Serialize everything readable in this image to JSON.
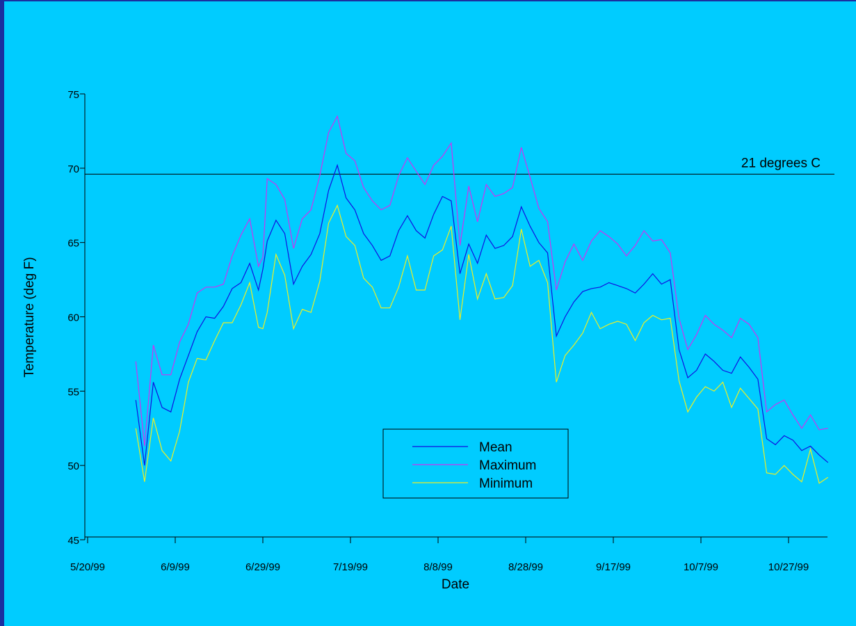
{
  "chart_data": {
    "type": "line",
    "title": "",
    "xlabel": "Date",
    "ylabel": "Temperature (deg F)",
    "ylim": [
      45,
      75
    ],
    "yticks": [
      45,
      50,
      55,
      60,
      65,
      70,
      75
    ],
    "xlim": [
      "1999-05-20",
      "1999-11-05"
    ],
    "xticks": [
      {
        "date": "1999-05-20",
        "label": "5/20/99"
      },
      {
        "date": "1999-06-09",
        "label": "6/9/99"
      },
      {
        "date": "1999-06-29",
        "label": "6/29/99"
      },
      {
        "date": "1999-07-19",
        "label": "7/19/99"
      },
      {
        "date": "1999-08-08",
        "label": "8/8/99"
      },
      {
        "date": "1999-08-28",
        "label": "8/28/99"
      },
      {
        "date": "1999-09-17",
        "label": "9/17/99"
      },
      {
        "date": "1999-10-07",
        "label": "10/7/99"
      },
      {
        "date": "1999-10-27",
        "label": "10/27/99"
      }
    ],
    "grid": false,
    "legend_position": "bottom-center",
    "reference_line": {
      "y": 69.6,
      "label": "21 degrees C",
      "color": "#000000"
    },
    "series": [
      {
        "name": "Mean",
        "color": "#1010e0",
        "points": [
          [
            "1999-05-31",
            54.4
          ],
          [
            "1999-06-02",
            50.0
          ],
          [
            "1999-06-04",
            55.6
          ],
          [
            "1999-06-06",
            53.9
          ],
          [
            "1999-06-08",
            53.6
          ],
          [
            "1999-06-10",
            55.8
          ],
          [
            "1999-06-12",
            57.4
          ],
          [
            "1999-06-14",
            59.0
          ],
          [
            "1999-06-16",
            60.0
          ],
          [
            "1999-06-18",
            59.9
          ],
          [
            "1999-06-20",
            60.7
          ],
          [
            "1999-06-22",
            61.9
          ],
          [
            "1999-06-24",
            62.3
          ],
          [
            "1999-06-26",
            63.6
          ],
          [
            "1999-06-28",
            61.8
          ],
          [
            "1999-06-29",
            63.2
          ],
          [
            "1999-06-30",
            65.1
          ],
          [
            "1999-07-02",
            66.5
          ],
          [
            "1999-07-04",
            65.6
          ],
          [
            "1999-07-06",
            62.2
          ],
          [
            "1999-07-08",
            63.4
          ],
          [
            "1999-07-10",
            64.2
          ],
          [
            "1999-07-12",
            65.6
          ],
          [
            "1999-07-14",
            68.5
          ],
          [
            "1999-07-16",
            70.2
          ],
          [
            "1999-07-18",
            68.0
          ],
          [
            "1999-07-20",
            67.2
          ],
          [
            "1999-07-22",
            65.6
          ],
          [
            "1999-07-24",
            64.8
          ],
          [
            "1999-07-26",
            63.8
          ],
          [
            "1999-07-28",
            64.1
          ],
          [
            "1999-07-30",
            65.8
          ],
          [
            "1999-08-01",
            66.8
          ],
          [
            "1999-08-03",
            65.8
          ],
          [
            "1999-08-05",
            65.3
          ],
          [
            "1999-08-07",
            66.9
          ],
          [
            "1999-08-09",
            68.1
          ],
          [
            "1999-08-11",
            67.8
          ],
          [
            "1999-08-13",
            62.9
          ],
          [
            "1999-08-15",
            64.9
          ],
          [
            "1999-08-17",
            63.6
          ],
          [
            "1999-08-19",
            65.5
          ],
          [
            "1999-08-21",
            64.6
          ],
          [
            "1999-08-23",
            64.8
          ],
          [
            "1999-08-25",
            65.4
          ],
          [
            "1999-08-27",
            67.4
          ],
          [
            "1999-08-29",
            66.1
          ],
          [
            "1999-08-31",
            65.0
          ],
          [
            "1999-09-02",
            64.3
          ],
          [
            "1999-09-04",
            58.7
          ],
          [
            "1999-09-06",
            60.0
          ],
          [
            "1999-09-08",
            61.0
          ],
          [
            "1999-09-10",
            61.7
          ],
          [
            "1999-09-12",
            61.9
          ],
          [
            "1999-09-14",
            62.0
          ],
          [
            "1999-09-16",
            62.3
          ],
          [
            "1999-09-18",
            62.1
          ],
          [
            "1999-09-20",
            61.9
          ],
          [
            "1999-09-22",
            61.6
          ],
          [
            "1999-09-24",
            62.2
          ],
          [
            "1999-09-26",
            62.9
          ],
          [
            "1999-09-28",
            62.2
          ],
          [
            "1999-09-30",
            62.5
          ],
          [
            "1999-10-02",
            57.8
          ],
          [
            "1999-10-04",
            55.9
          ],
          [
            "1999-10-06",
            56.4
          ],
          [
            "1999-10-08",
            57.5
          ],
          [
            "1999-10-10",
            57.0
          ],
          [
            "1999-10-12",
            56.4
          ],
          [
            "1999-10-14",
            56.2
          ],
          [
            "1999-10-16",
            57.3
          ],
          [
            "1999-10-18",
            56.6
          ],
          [
            "1999-10-20",
            55.8
          ],
          [
            "1999-10-22",
            51.8
          ],
          [
            "1999-10-24",
            51.4
          ],
          [
            "1999-10-26",
            52.0
          ],
          [
            "1999-10-28",
            51.7
          ],
          [
            "1999-10-30",
            51.0
          ],
          [
            "1999-11-01",
            51.3
          ],
          [
            "1999-11-03",
            50.7
          ],
          [
            "1999-11-05",
            50.2
          ]
        ]
      },
      {
        "name": "Maximum",
        "color": "#d030f0",
        "points": [
          [
            "1999-05-31",
            57.0
          ],
          [
            "1999-06-02",
            51.3
          ],
          [
            "1999-06-04",
            58.1
          ],
          [
            "1999-06-06",
            56.1
          ],
          [
            "1999-06-08",
            56.1
          ],
          [
            "1999-06-10",
            58.3
          ],
          [
            "1999-06-12",
            59.5
          ],
          [
            "1999-06-14",
            61.6
          ],
          [
            "1999-06-16",
            62.0
          ],
          [
            "1999-06-18",
            62.0
          ],
          [
            "1999-06-20",
            62.2
          ],
          [
            "1999-06-22",
            64.1
          ],
          [
            "1999-06-24",
            65.5
          ],
          [
            "1999-06-26",
            66.6
          ],
          [
            "1999-06-28",
            63.4
          ],
          [
            "1999-06-29",
            64.0
          ],
          [
            "1999-06-30",
            69.3
          ],
          [
            "1999-07-02",
            68.9
          ],
          [
            "1999-07-04",
            67.9
          ],
          [
            "1999-07-06",
            64.6
          ],
          [
            "1999-07-08",
            66.6
          ],
          [
            "1999-07-10",
            67.2
          ],
          [
            "1999-07-12",
            69.5
          ],
          [
            "1999-07-14",
            72.4
          ],
          [
            "1999-07-16",
            73.5
          ],
          [
            "1999-07-18",
            71.0
          ],
          [
            "1999-07-20",
            70.5
          ],
          [
            "1999-07-22",
            68.7
          ],
          [
            "1999-07-24",
            67.8
          ],
          [
            "1999-07-26",
            67.2
          ],
          [
            "1999-07-28",
            67.5
          ],
          [
            "1999-07-30",
            69.5
          ],
          [
            "1999-08-01",
            70.7
          ],
          [
            "1999-08-03",
            69.8
          ],
          [
            "1999-08-05",
            68.9
          ],
          [
            "1999-08-07",
            70.2
          ],
          [
            "1999-08-09",
            70.8
          ],
          [
            "1999-08-11",
            71.7
          ],
          [
            "1999-08-13",
            64.8
          ],
          [
            "1999-08-15",
            68.8
          ],
          [
            "1999-08-17",
            66.4
          ],
          [
            "1999-08-19",
            68.9
          ],
          [
            "1999-08-21",
            68.1
          ],
          [
            "1999-08-23",
            68.3
          ],
          [
            "1999-08-25",
            68.7
          ],
          [
            "1999-08-27",
            71.4
          ],
          [
            "1999-08-29",
            69.4
          ],
          [
            "1999-08-31",
            67.3
          ],
          [
            "1999-09-02",
            66.4
          ],
          [
            "1999-09-04",
            61.8
          ],
          [
            "1999-09-06",
            63.7
          ],
          [
            "1999-09-08",
            64.9
          ],
          [
            "1999-09-10",
            63.8
          ],
          [
            "1999-09-12",
            65.1
          ],
          [
            "1999-09-14",
            65.8
          ],
          [
            "1999-09-16",
            65.4
          ],
          [
            "1999-09-18",
            64.9
          ],
          [
            "1999-09-20",
            64.1
          ],
          [
            "1999-09-22",
            64.8
          ],
          [
            "1999-09-24",
            65.8
          ],
          [
            "1999-09-26",
            65.1
          ],
          [
            "1999-09-28",
            65.2
          ],
          [
            "1999-09-30",
            64.3
          ],
          [
            "1999-10-02",
            59.9
          ],
          [
            "1999-10-04",
            57.8
          ],
          [
            "1999-10-06",
            58.8
          ],
          [
            "1999-10-08",
            60.1
          ],
          [
            "1999-10-10",
            59.5
          ],
          [
            "1999-10-12",
            59.1
          ],
          [
            "1999-10-14",
            58.6
          ],
          [
            "1999-10-16",
            59.9
          ],
          [
            "1999-10-18",
            59.5
          ],
          [
            "1999-10-20",
            58.6
          ],
          [
            "1999-10-22",
            53.6
          ],
          [
            "1999-10-24",
            54.1
          ],
          [
            "1999-10-26",
            54.4
          ],
          [
            "1999-10-28",
            53.4
          ],
          [
            "1999-10-30",
            52.5
          ],
          [
            "1999-11-01",
            53.4
          ],
          [
            "1999-11-03",
            52.4
          ],
          [
            "1999-11-05",
            52.5
          ]
        ]
      },
      {
        "name": "Minimum",
        "color": "#f0f020",
        "points": [
          [
            "1999-05-31",
            52.5
          ],
          [
            "1999-06-02",
            48.9
          ],
          [
            "1999-06-04",
            53.2
          ],
          [
            "1999-06-06",
            51.0
          ],
          [
            "1999-06-08",
            50.3
          ],
          [
            "1999-06-10",
            52.3
          ],
          [
            "1999-06-12",
            55.6
          ],
          [
            "1999-06-14",
            57.2
          ],
          [
            "1999-06-16",
            57.1
          ],
          [
            "1999-06-18",
            58.4
          ],
          [
            "1999-06-20",
            59.6
          ],
          [
            "1999-06-22",
            59.6
          ],
          [
            "1999-06-24",
            60.8
          ],
          [
            "1999-06-26",
            62.3
          ],
          [
            "1999-06-28",
            59.3
          ],
          [
            "1999-06-29",
            59.2
          ],
          [
            "1999-06-30",
            60.3
          ],
          [
            "1999-07-02",
            64.2
          ],
          [
            "1999-07-04",
            62.8
          ],
          [
            "1999-07-06",
            59.2
          ],
          [
            "1999-07-08",
            60.5
          ],
          [
            "1999-07-10",
            60.3
          ],
          [
            "1999-07-12",
            62.4
          ],
          [
            "1999-07-14",
            66.3
          ],
          [
            "1999-07-16",
            67.5
          ],
          [
            "1999-07-18",
            65.4
          ],
          [
            "1999-07-20",
            64.8
          ],
          [
            "1999-07-22",
            62.6
          ],
          [
            "1999-07-24",
            62.0
          ],
          [
            "1999-07-26",
            60.6
          ],
          [
            "1999-07-28",
            60.6
          ],
          [
            "1999-07-30",
            62.0
          ],
          [
            "1999-08-01",
            64.1
          ],
          [
            "1999-08-03",
            61.8
          ],
          [
            "1999-08-05",
            61.8
          ],
          [
            "1999-08-07",
            64.1
          ],
          [
            "1999-08-09",
            64.5
          ],
          [
            "1999-08-11",
            66.1
          ],
          [
            "1999-08-13",
            59.8
          ],
          [
            "1999-08-15",
            64.2
          ],
          [
            "1999-08-17",
            61.2
          ],
          [
            "1999-08-19",
            62.9
          ],
          [
            "1999-08-21",
            61.2
          ],
          [
            "1999-08-23",
            61.3
          ],
          [
            "1999-08-25",
            62.1
          ],
          [
            "1999-08-27",
            65.9
          ],
          [
            "1999-08-29",
            63.4
          ],
          [
            "1999-08-31",
            63.8
          ],
          [
            "1999-09-02",
            62.3
          ],
          [
            "1999-09-04",
            55.6
          ],
          [
            "1999-09-06",
            57.4
          ],
          [
            "1999-09-08",
            58.1
          ],
          [
            "1999-09-10",
            58.9
          ],
          [
            "1999-09-12",
            60.3
          ],
          [
            "1999-09-14",
            59.2
          ],
          [
            "1999-09-16",
            59.5
          ],
          [
            "1999-09-18",
            59.7
          ],
          [
            "1999-09-20",
            59.5
          ],
          [
            "1999-09-22",
            58.4
          ],
          [
            "1999-09-24",
            59.6
          ],
          [
            "1999-09-26",
            60.1
          ],
          [
            "1999-09-28",
            59.8
          ],
          [
            "1999-09-30",
            59.9
          ],
          [
            "1999-10-02",
            55.7
          ],
          [
            "1999-10-04",
            53.6
          ],
          [
            "1999-10-06",
            54.6
          ],
          [
            "1999-10-08",
            55.3
          ],
          [
            "1999-10-10",
            55.0
          ],
          [
            "1999-10-12",
            55.6
          ],
          [
            "1999-10-14",
            53.9
          ],
          [
            "1999-10-16",
            55.2
          ],
          [
            "1999-10-18",
            54.5
          ],
          [
            "1999-10-20",
            53.8
          ],
          [
            "1999-10-22",
            49.5
          ],
          [
            "1999-10-24",
            49.4
          ],
          [
            "1999-10-26",
            50.0
          ],
          [
            "1999-10-28",
            49.4
          ],
          [
            "1999-10-30",
            48.9
          ],
          [
            "1999-11-01",
            51.1
          ],
          [
            "1999-11-03",
            48.8
          ],
          [
            "1999-11-05",
            49.2
          ]
        ]
      }
    ]
  }
}
